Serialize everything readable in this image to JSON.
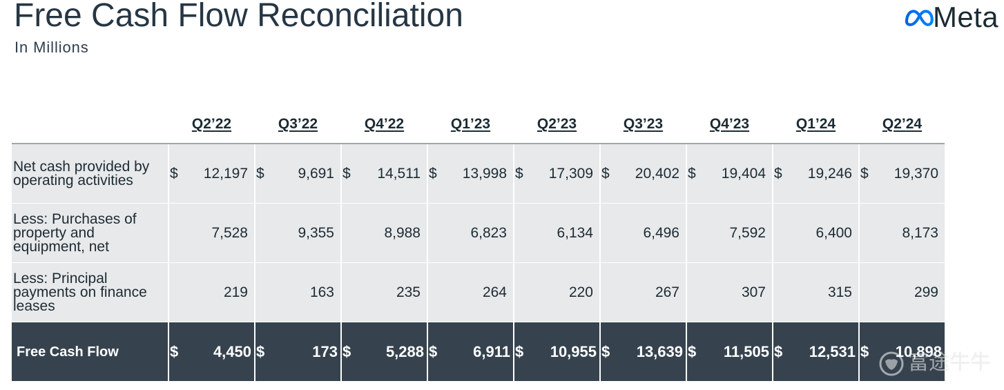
{
  "slide": {
    "title": "Free Cash Flow Reconciliation",
    "subtitle": "In Millions"
  },
  "brand": {
    "logo_icon": "meta-infinity-icon",
    "logo_text": "Meta",
    "logo_gradient": [
      "#0064e0",
      "#0082fb"
    ]
  },
  "table": {
    "columns": [
      "Q2’22",
      "Q3’22",
      "Q4’22",
      "Q1’23",
      "Q2’23",
      "Q3’23",
      "Q4’23",
      "Q1’24",
      "Q2’24"
    ],
    "rows": [
      {
        "label_lines": [
          "Net cash provided by",
          "operating activities"
        ],
        "currency": "$",
        "values": [
          "12,197",
          "9,691",
          "14,511",
          "13,998",
          "17,309",
          "20,402",
          "19,404",
          "19,246",
          "19,370"
        ],
        "is_total": false
      },
      {
        "label_lines": [
          "Less: Purchases of",
          "property and",
          "equipment, net"
        ],
        "values": [
          "7,528",
          "9,355",
          "8,988",
          "6,823",
          "6,134",
          "6,496",
          "7,592",
          "6,400",
          "8,173"
        ],
        "is_total": false
      },
      {
        "label_lines": [
          "Less: Principal",
          "payments on finance",
          "leases"
        ],
        "values": [
          "219",
          "163",
          "235",
          "264",
          "220",
          "267",
          "307",
          "315",
          "299"
        ],
        "is_total": false
      },
      {
        "label_lines": [
          "Free Cash Flow"
        ],
        "currency": "$",
        "values": [
          "4,450",
          "173",
          "5,288",
          "6,911",
          "10,955",
          "13,639",
          "11,505",
          "12,531",
          "10,898"
        ],
        "is_total": true
      }
    ]
  },
  "colors": {
    "text": "#1c2b33",
    "title": "#263644",
    "row_background": "#e8e9eb",
    "total_row_background": "#36434f",
    "total_row_text": "#ffffff",
    "header_rule": "#9ea5ab"
  },
  "watermark": {
    "icon": "futu-bull-icon",
    "text": "富途牛牛"
  }
}
